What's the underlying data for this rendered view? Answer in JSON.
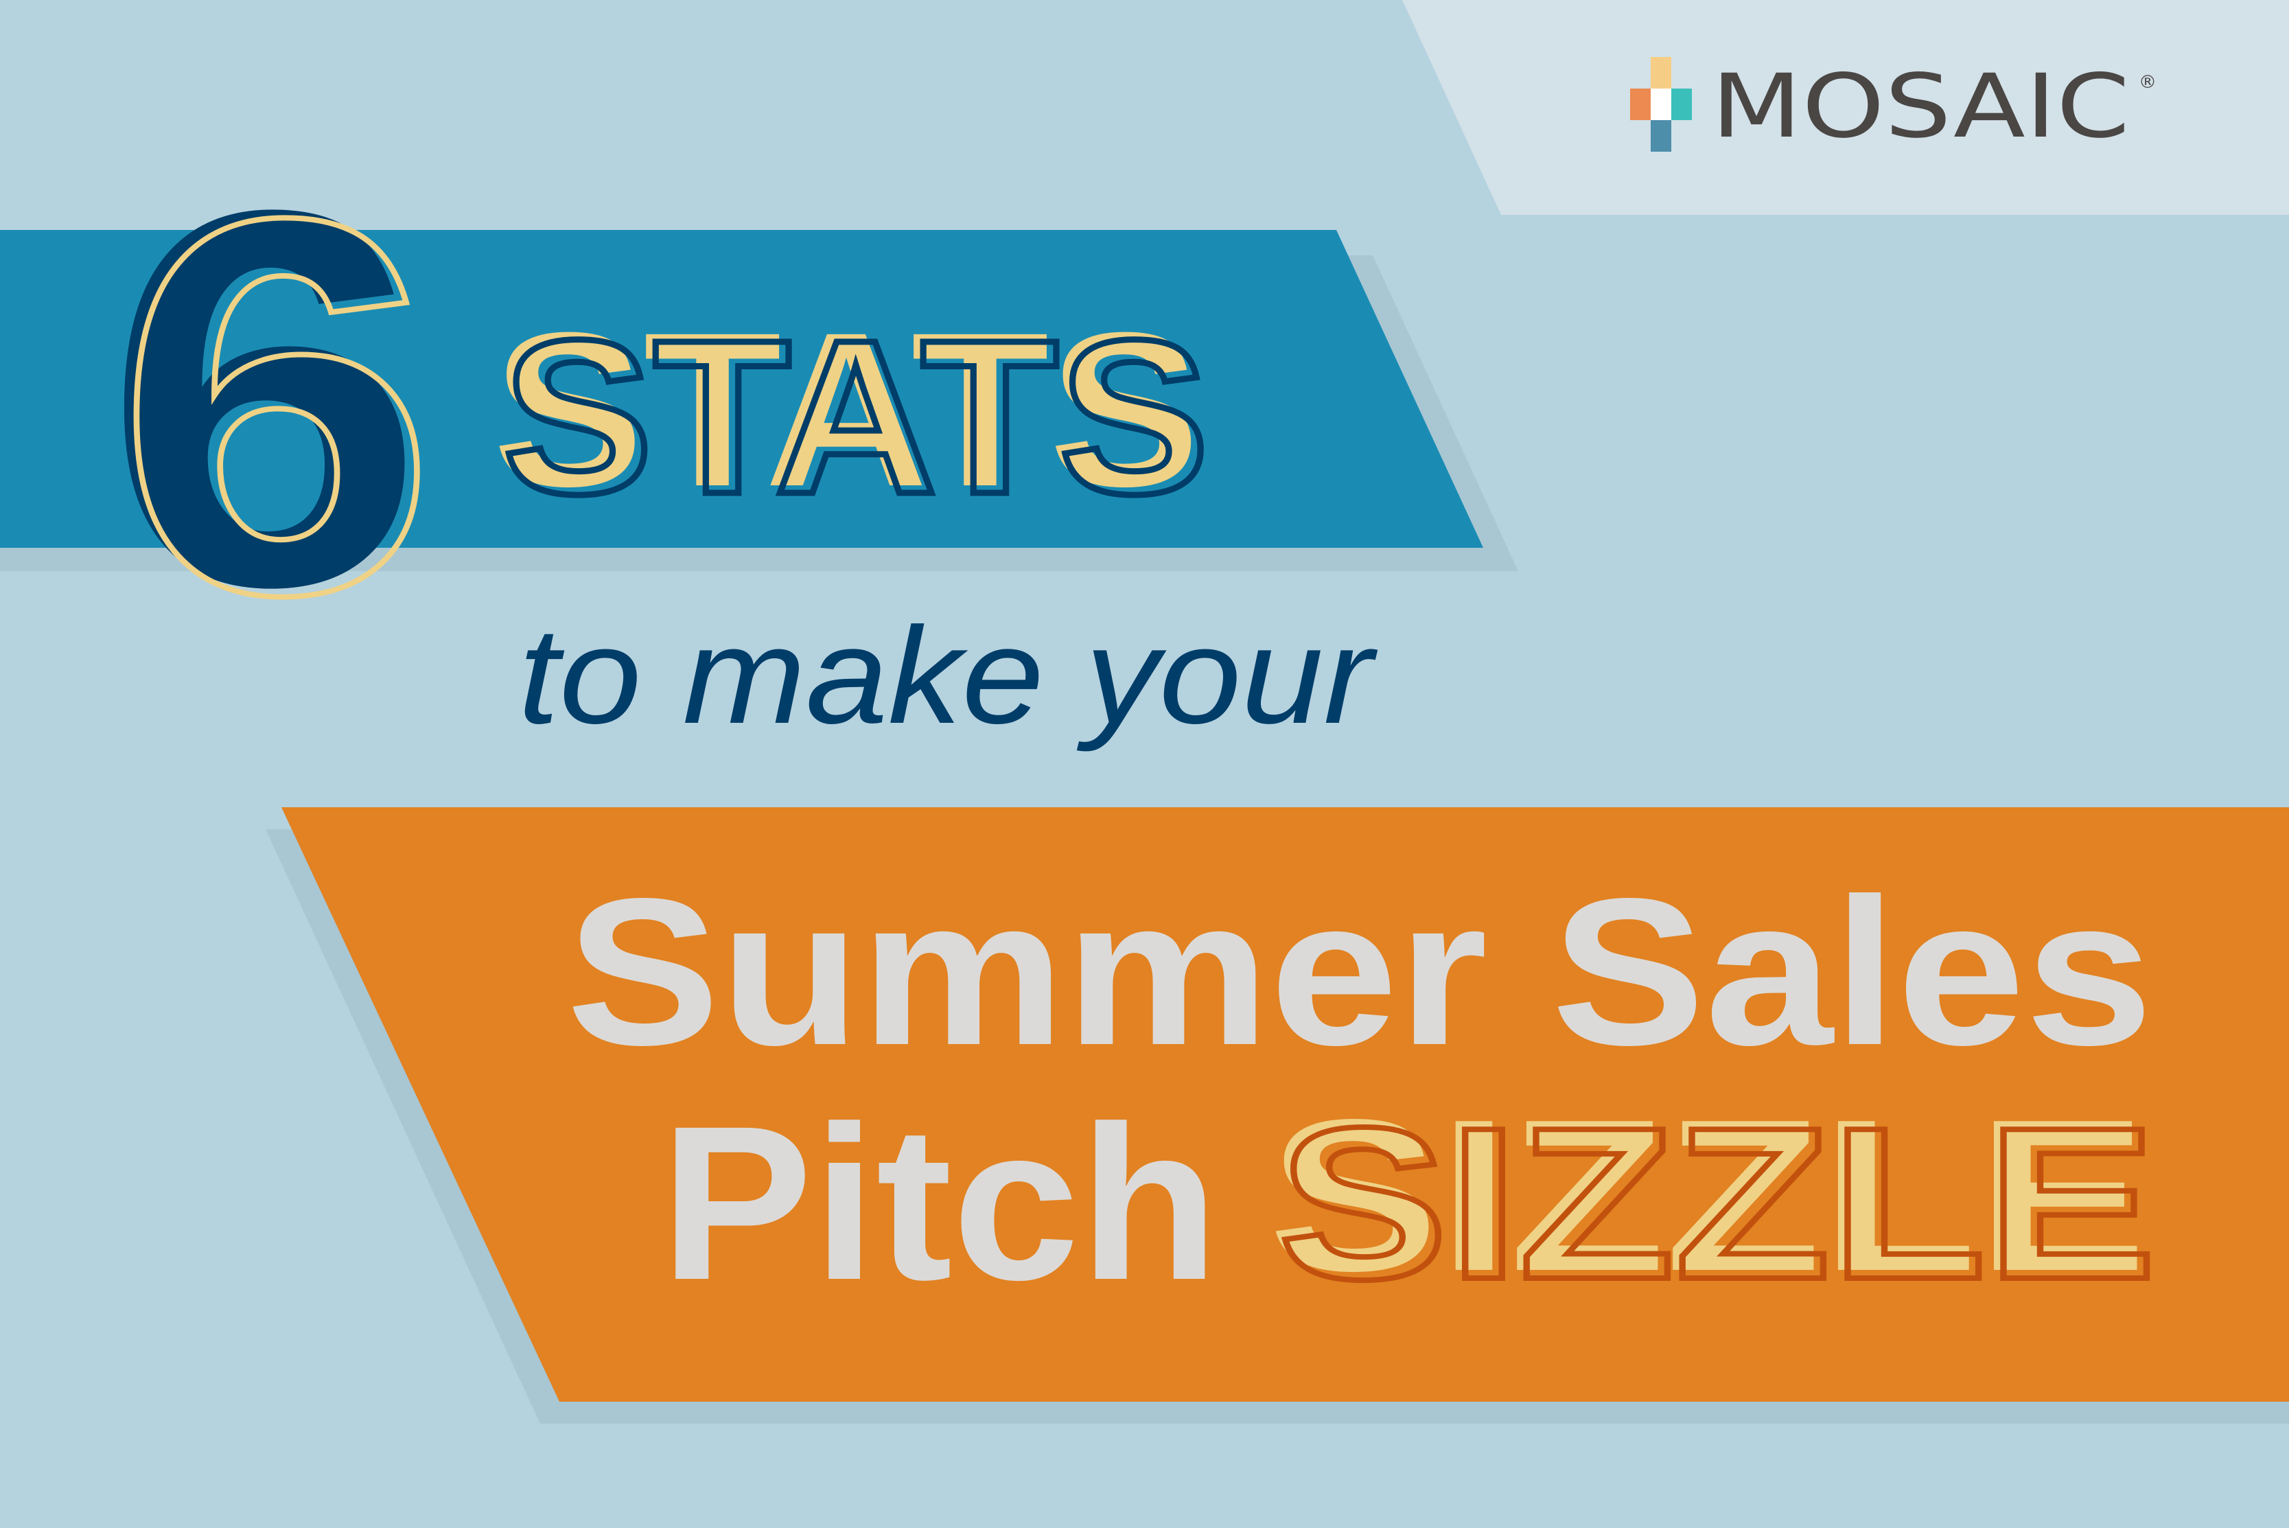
{
  "brand": {
    "name": "MOSAIC",
    "registered_mark": "®",
    "logo_colors": [
      "#f6cd85",
      "#ec8a52",
      "#ffffff",
      "#3bbfbb",
      "#4d8eab"
    ]
  },
  "headline": {
    "number": "6",
    "word": "STATS",
    "connector": "to make your",
    "line1": "Summer Sales",
    "line2_plain": "Pitch",
    "line2_emphasis": "SIZZLE"
  },
  "colors": {
    "background": "#b5d2df",
    "top_panel": "#d3e1e8",
    "blue_banner": "#1a8cb4",
    "orange_banner": "#e28222",
    "shadow": "#a9c6d3",
    "navy": "#003d68",
    "yellow": "#efd286",
    "light_text": "#dcdad8",
    "burnt_orange": "#c2510e",
    "logo_text": "#4a4644"
  }
}
